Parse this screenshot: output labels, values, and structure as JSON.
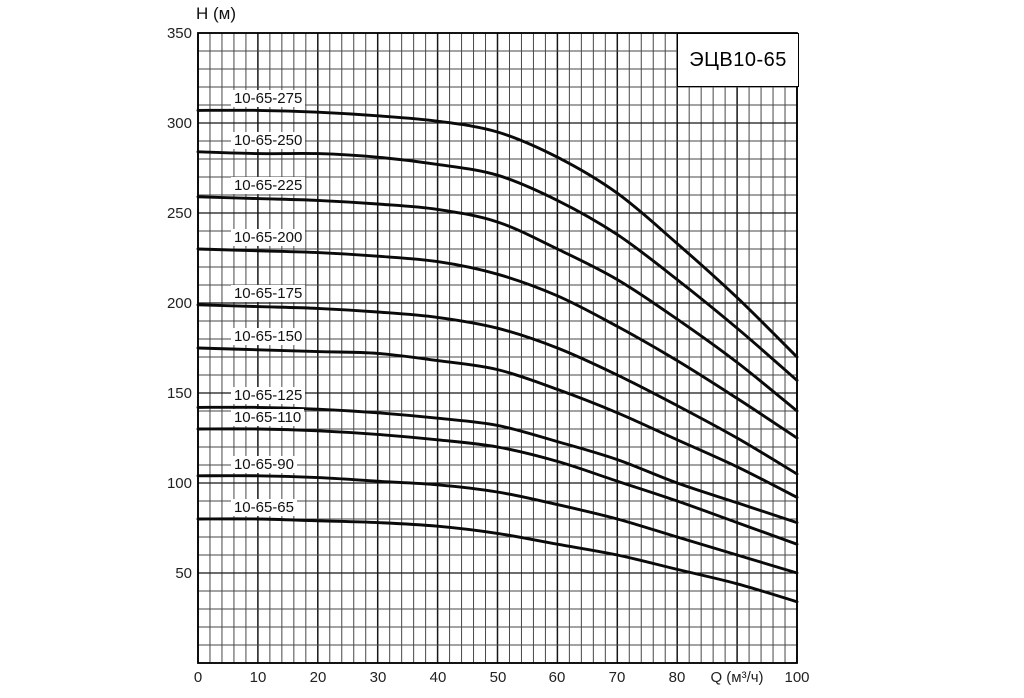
{
  "title_box": "ЭЦВ10-65",
  "axes": {
    "y_label": "H (м)",
    "x_label": "Q (м³/ч)",
    "y_ticks": [
      350,
      300,
      250,
      200,
      150,
      100,
      50
    ],
    "x_ticks": [
      0,
      10,
      20,
      30,
      40,
      50,
      60,
      70,
      80
    ],
    "x_last_tick": 100
  },
  "chart_data": {
    "type": "line",
    "title": "ЭЦВ10-65",
    "xlabel": "Q (м³/ч)",
    "ylabel": "H (м)",
    "xlim": [
      0,
      100
    ],
    "ylim": [
      0,
      350
    ],
    "grid": "on",
    "grid_step_x": 2,
    "grid_step_y": 10,
    "major_step_x": 10,
    "major_step_y": 50,
    "legend_position": "labels-on-curves",
    "line_color": "#0a0a0a",
    "x": [
      0,
      10,
      20,
      30,
      40,
      50,
      60,
      70,
      80,
      90,
      100
    ],
    "series": [
      {
        "name": "10-65-275",
        "values": [
          307,
          307,
          306,
          304,
          301,
          295,
          281,
          261,
          233,
          203,
          170
        ]
      },
      {
        "name": "10-65-250",
        "values": [
          284,
          283,
          283,
          281,
          277,
          271,
          257,
          238,
          213,
          186,
          157
        ]
      },
      {
        "name": "10-65-225",
        "values": [
          259,
          258,
          257,
          255,
          252,
          245,
          230,
          213,
          191,
          167,
          140
        ]
      },
      {
        "name": "10-65-200",
        "values": [
          230,
          229,
          228,
          226,
          223,
          216,
          204,
          187,
          168,
          147,
          125
        ]
      },
      {
        "name": "10-65-175",
        "values": [
          199,
          198,
          197,
          195,
          192,
          186,
          175,
          160,
          143,
          125,
          105
        ]
      },
      {
        "name": "10-65-150",
        "values": [
          175,
          174,
          173,
          172,
          168,
          163,
          152,
          139,
          124,
          109,
          92
        ]
      },
      {
        "name": "10-65-125",
        "values": [
          142,
          142,
          141,
          139,
          136,
          132,
          123,
          113,
          100,
          89,
          78
        ]
      },
      {
        "name": "10-65-110",
        "values": [
          130,
          130,
          129,
          127,
          124,
          120,
          112,
          101,
          90,
          78,
          66
        ]
      },
      {
        "name": "10-65-90",
        "values": [
          104,
          104,
          103,
          101,
          99,
          95,
          88,
          80,
          70,
          60,
          50
        ]
      },
      {
        "name": "10-65-65",
        "values": [
          80,
          80,
          79,
          78,
          76,
          72,
          66,
          60,
          52,
          44,
          34
        ]
      }
    ]
  }
}
